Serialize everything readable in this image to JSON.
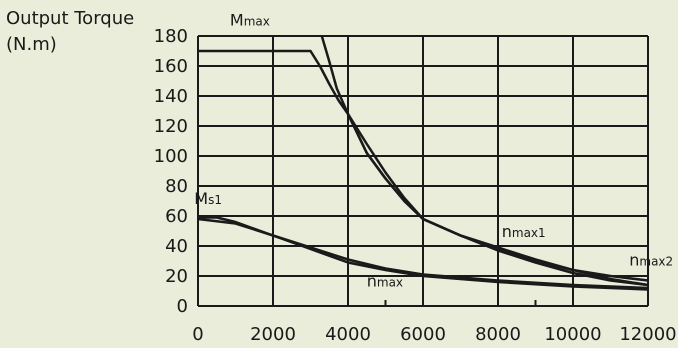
{
  "chart_data": {
    "type": "line",
    "xlabel": "",
    "ylabel_line1": "Output Torque",
    "ylabel_line2": "(N.m)",
    "xlim": [
      0,
      12000
    ],
    "ylim": [
      0,
      180
    ],
    "x_ticks": [
      0,
      2000,
      4000,
      6000,
      8000,
      10000,
      12000
    ],
    "y_ticks": [
      0,
      20,
      40,
      60,
      80,
      100,
      120,
      140,
      160,
      180
    ],
    "grid": true,
    "series": [
      {
        "name": "Mmax",
        "points": [
          [
            0,
            170
          ],
          [
            3000,
            170
          ],
          [
            3250,
            160
          ],
          [
            3500,
            148
          ],
          [
            3750,
            137
          ],
          [
            4000,
            128
          ],
          [
            4500,
            108
          ],
          [
            5000,
            89
          ],
          [
            5500,
            72
          ],
          [
            6000,
            58
          ],
          [
            7000,
            47
          ],
          [
            8000,
            39
          ],
          [
            9000,
            31
          ],
          [
            10000,
            24
          ],
          [
            11000,
            18
          ],
          [
            12000,
            14
          ]
        ]
      },
      {
        "name": "nmax1",
        "points": [
          [
            3300,
            180
          ],
          [
            3500,
            163
          ],
          [
            3700,
            145
          ],
          [
            4000,
            128
          ],
          [
            4500,
            102
          ],
          [
            5000,
            85
          ],
          [
            5500,
            70
          ],
          [
            6000,
            58
          ],
          [
            7000,
            47
          ],
          [
            8000,
            37
          ],
          [
            9000,
            29
          ],
          [
            10000,
            22
          ],
          [
            11000,
            17
          ],
          [
            12000,
            14
          ]
        ]
      },
      {
        "name": "nmax2",
        "points": [
          [
            4000,
            128
          ],
          [
            4500,
            102
          ],
          [
            5000,
            85
          ],
          [
            5500,
            70
          ],
          [
            6000,
            58
          ],
          [
            7000,
            47
          ],
          [
            8000,
            38
          ],
          [
            9000,
            30
          ],
          [
            10000,
            24
          ],
          [
            11000,
            20
          ],
          [
            12000,
            17
          ]
        ]
      },
      {
        "name": "Ms1",
        "points": [
          [
            0,
            59
          ],
          [
            500,
            59
          ],
          [
            1000,
            56
          ],
          [
            2000,
            47
          ],
          [
            3000,
            38
          ],
          [
            4000,
            29
          ],
          [
            5000,
            24
          ],
          [
            6000,
            20
          ],
          [
            8000,
            16
          ],
          [
            10000,
            13
          ],
          [
            12000,
            11
          ]
        ]
      },
      {
        "name": "nmax",
        "points": [
          [
            0,
            58
          ],
          [
            1000,
            55
          ],
          [
            2000,
            47
          ],
          [
            3000,
            39
          ],
          [
            4000,
            31
          ],
          [
            5000,
            25
          ],
          [
            6000,
            21
          ],
          [
            8000,
            17
          ],
          [
            10000,
            14
          ],
          [
            12000,
            12
          ]
        ]
      }
    ],
    "annotations": [
      {
        "text": "Mmax",
        "base": "M",
        "sub": "max",
        "x": 850,
        "y": 187
      },
      {
        "text": "Ms1",
        "base": "M",
        "sub": "s1",
        "x": -100,
        "y": 68
      },
      {
        "text": "nmax1",
        "base": "n",
        "sub": "max1",
        "x": 8100,
        "y": 46
      },
      {
        "text": "nmax2",
        "base": "n",
        "sub": "max2",
        "x": 11500,
        "y": 27
      },
      {
        "text": "nmax",
        "base": "n",
        "sub": "max",
        "x": 4500,
        "y": 13
      }
    ],
    "tick_marks": [
      5000,
      9000
    ]
  }
}
